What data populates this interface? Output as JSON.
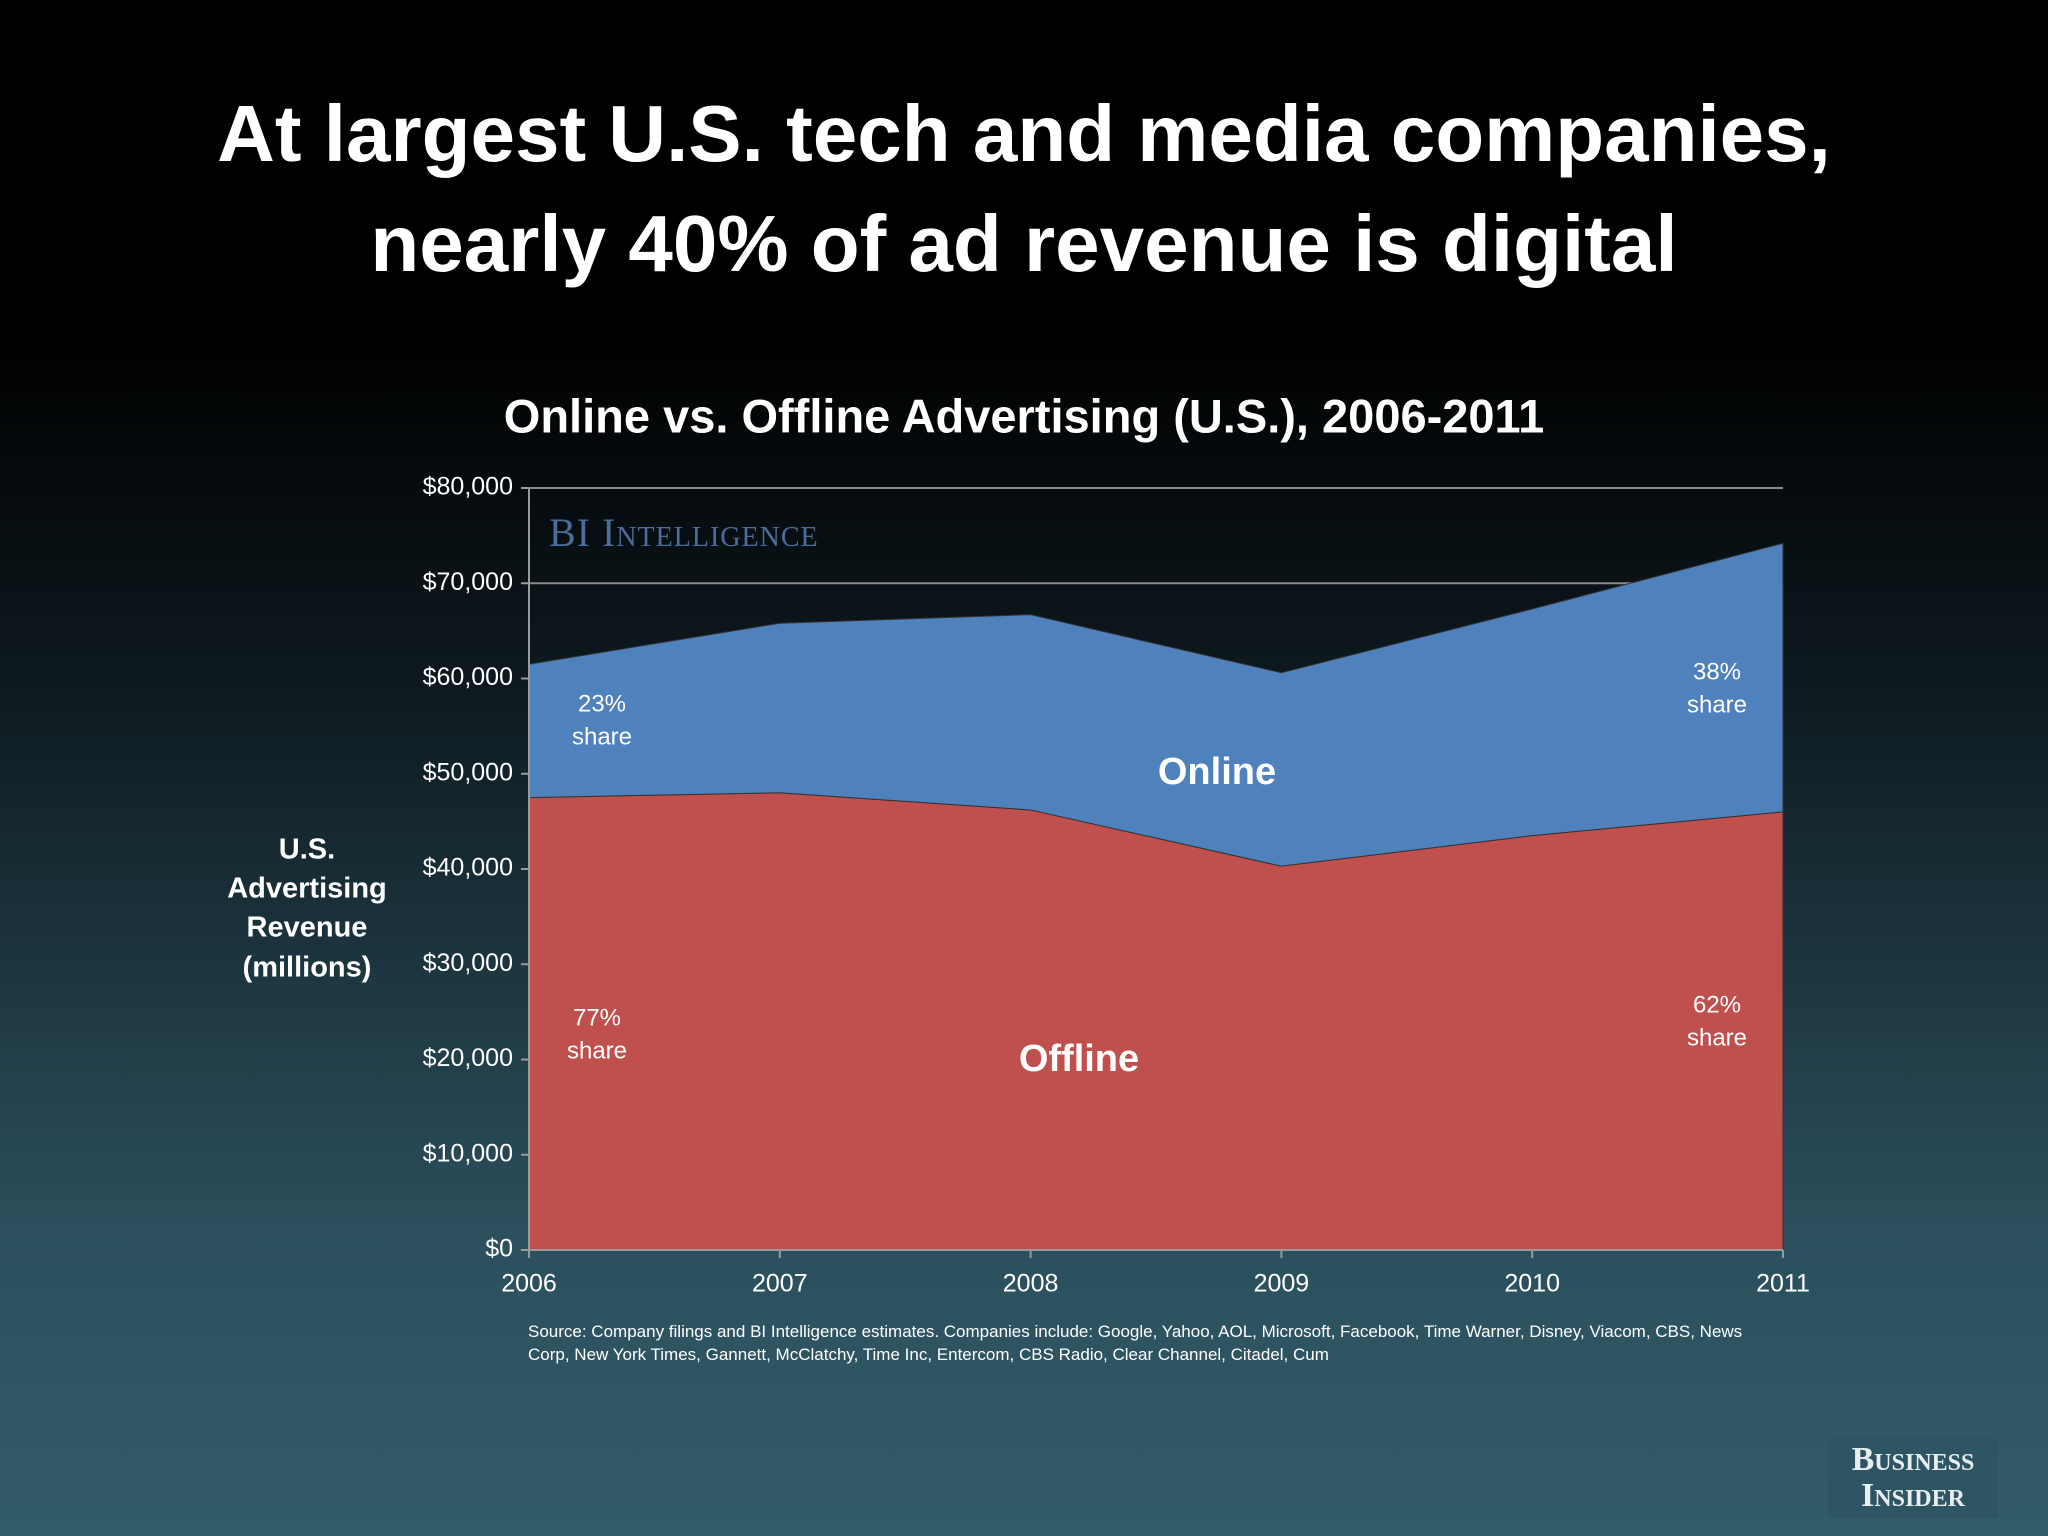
{
  "title_lines": [
    "At largest U.S. tech and media companies,",
    "nearly 40% of ad revenue is digital"
  ],
  "chart_data": {
    "type": "stacked_area",
    "title": "Online vs. Offline Advertising (U.S.), 2006-2011",
    "y_label_lines": [
      "U.S.",
      "Advertising",
      "Revenue",
      "(millions)"
    ],
    "categories": [
      "2006",
      "2007",
      "2008",
      "2009",
      "2010",
      "2011"
    ],
    "series": [
      {
        "name": "Offline",
        "color": "#c0504d",
        "values": [
          47500,
          48000,
          46200,
          40300,
          43500,
          46000
        ]
      },
      {
        "name": "Online",
        "color": "#4f81bd",
        "values": [
          14000,
          17800,
          20500,
          20300,
          23800,
          28200
        ]
      }
    ],
    "ylim": [
      0,
      80000
    ],
    "yticks": [
      {
        "value": 0,
        "label": "$0"
      },
      {
        "value": 10000,
        "label": "$10,000"
      },
      {
        "value": 20000,
        "label": "$20,000"
      },
      {
        "value": 30000,
        "label": "$30,000"
      },
      {
        "value": 40000,
        "label": "$40,000"
      },
      {
        "value": 50000,
        "label": "$50,000"
      },
      {
        "value": 60000,
        "label": "$60,000"
      },
      {
        "value": 70000,
        "label": "$70,000"
      },
      {
        "value": 80000,
        "label": "$80,000"
      }
    ],
    "grid": true,
    "annotations": [
      [
        "23%",
        "share"
      ],
      [
        "38%",
        "share"
      ],
      [
        "77%",
        "share"
      ],
      [
        "62%",
        "share"
      ]
    ],
    "watermark": "BI Intelligence"
  },
  "source": "Source: Company filings and BI Intelligence estimates. Companies include: Google, Yahoo, AOL, Microsoft, Facebook, Time Warner, Disney, Viacom, CBS, News Corp, New York Times, Gannett, McClatchy, Time Inc, Entercom, CBS Radio, Clear Channel, Citadel, Cum",
  "logo_lines": [
    "Business",
    "Insider"
  ]
}
